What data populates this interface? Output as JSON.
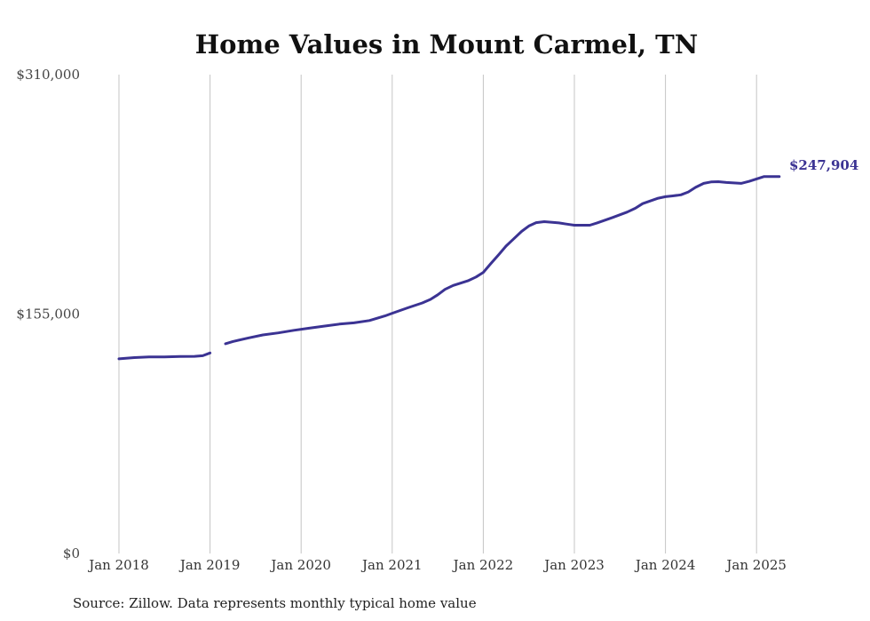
{
  "chart_data": {
    "type": "line",
    "title": "Home Values in Mount Carmel, TN",
    "xlabel": "",
    "ylabel": "",
    "ylim": [
      0,
      310000
    ],
    "yticks": [
      {
        "value": 0,
        "label": "$0"
      },
      {
        "value": 155000,
        "label": "$155,000"
      },
      {
        "value": 310000,
        "label": "$310,000"
      }
    ],
    "xlim": [
      2018.0,
      2025.25
    ],
    "xticks": [
      {
        "value": 2018,
        "label": "Jan 2018"
      },
      {
        "value": 2019,
        "label": "Jan 2019"
      },
      {
        "value": 2020,
        "label": "Jan 2020"
      },
      {
        "value": 2021,
        "label": "Jan 2021"
      },
      {
        "value": 2022,
        "label": "Jan 2022"
      },
      {
        "value": 2023,
        "label": "Jan 2023"
      },
      {
        "value": 2024,
        "label": "Jan 2024"
      },
      {
        "value": 2025,
        "label": "Jan 2025"
      }
    ],
    "grid": {
      "vertical": true,
      "horizontal": false
    },
    "end_label": "$247,904",
    "series": [
      {
        "color": "#3b3393",
        "segments": [
          [
            [
              2018.0,
              126000
            ],
            [
              2018.17,
              126800
            ],
            [
              2018.33,
              127200
            ],
            [
              2018.5,
              127300
            ],
            [
              2018.67,
              127500
            ],
            [
              2018.83,
              127600
            ],
            [
              2018.92,
              128000
            ],
            [
              2019.0,
              129800
            ]
          ],
          [
            [
              2019.17,
              135800
            ],
            [
              2019.25,
              137200
            ],
            [
              2019.42,
              139500
            ],
            [
              2019.58,
              141500
            ],
            [
              2019.75,
              142800
            ],
            [
              2019.92,
              144500
            ],
            [
              2020.08,
              145800
            ],
            [
              2020.25,
              147200
            ],
            [
              2020.42,
              148500
            ],
            [
              2020.58,
              149300
            ],
            [
              2020.75,
              150800
            ],
            [
              2020.92,
              153800
            ],
            [
              2021.0,
              155500
            ],
            [
              2021.17,
              159000
            ],
            [
              2021.33,
              162200
            ],
            [
              2021.42,
              164500
            ],
            [
              2021.5,
              167500
            ],
            [
              2021.58,
              171000
            ],
            [
              2021.67,
              173500
            ],
            [
              2021.75,
              175000
            ],
            [
              2021.83,
              176500
            ],
            [
              2021.92,
              179000
            ],
            [
              2022.0,
              182000
            ],
            [
              2022.08,
              187500
            ],
            [
              2022.17,
              193500
            ],
            [
              2022.25,
              199000
            ],
            [
              2022.33,
              203500
            ],
            [
              2022.42,
              208500
            ],
            [
              2022.5,
              212000
            ],
            [
              2022.58,
              214200
            ],
            [
              2022.67,
              214800
            ],
            [
              2022.83,
              214000
            ],
            [
              2022.92,
              213200
            ],
            [
              2023.0,
              212500
            ],
            [
              2023.17,
              212500
            ],
            [
              2023.25,
              214000
            ],
            [
              2023.42,
              217500
            ],
            [
              2023.58,
              221000
            ],
            [
              2023.67,
              223500
            ],
            [
              2023.75,
              226500
            ],
            [
              2023.92,
              230000
            ],
            [
              2024.0,
              231000
            ],
            [
              2024.08,
              231500
            ],
            [
              2024.17,
              232200
            ],
            [
              2024.25,
              234000
            ],
            [
              2024.33,
              237000
            ],
            [
              2024.42,
              239600
            ],
            [
              2024.5,
              240500
            ],
            [
              2024.58,
              240700
            ],
            [
              2024.67,
              240200
            ],
            [
              2024.83,
              239600
            ],
            [
              2024.92,
              240900
            ],
            [
              2025.0,
              242500
            ],
            [
              2025.08,
              244000
            ],
            [
              2025.25,
              244000
            ]
          ]
        ]
      }
    ]
  },
  "footer": {
    "source": "Source: Zillow. Data represents monthly typical home value"
  }
}
